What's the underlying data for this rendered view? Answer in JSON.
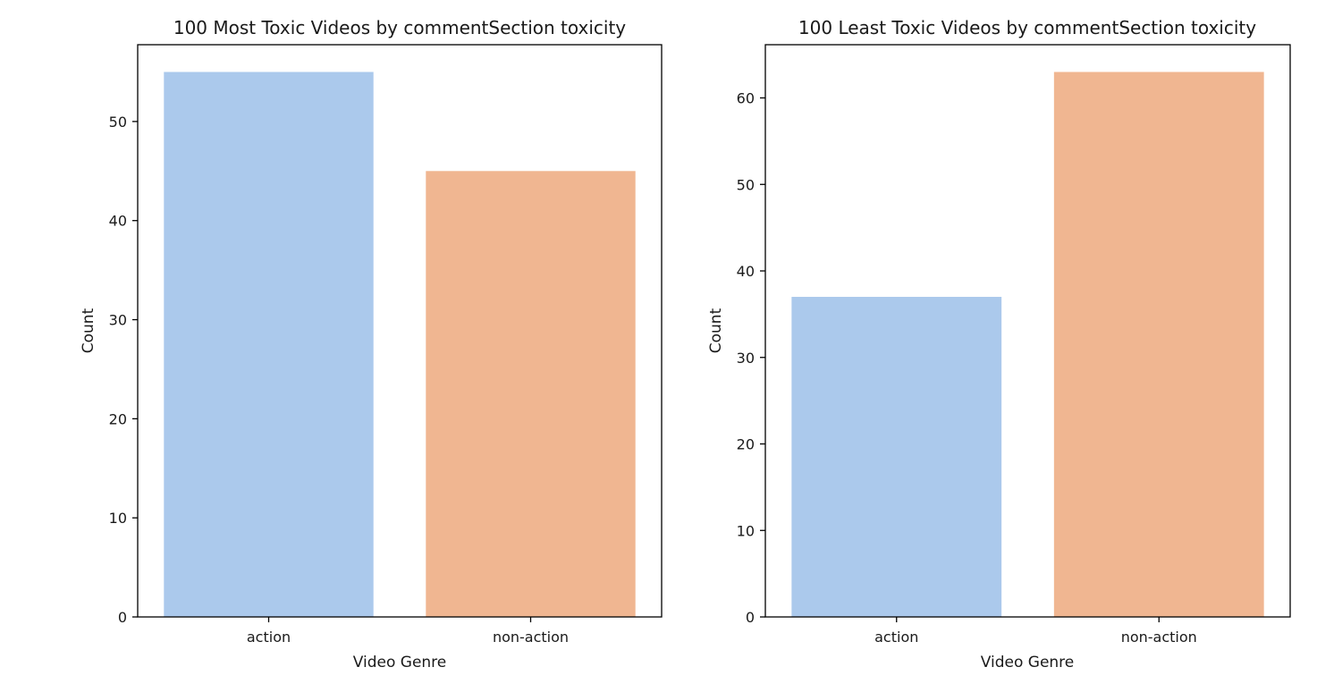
{
  "chart_data": [
    {
      "type": "bar",
      "title": "100 Most Toxic Videos by commentSection toxicity",
      "xlabel": "Video Genre",
      "ylabel": "Count",
      "categories": [
        "action",
        "non-action"
      ],
      "values": [
        55,
        45
      ],
      "ylim": [
        0,
        57.75
      ],
      "yticks": [
        0,
        10,
        20,
        30,
        40,
        50
      ],
      "colors": [
        "#abc9ec",
        "#f0b691"
      ],
      "grid": false,
      "legend": "none"
    },
    {
      "type": "bar",
      "title": "100 Least Toxic Videos by commentSection toxicity",
      "xlabel": "Video Genre",
      "ylabel": "Count",
      "categories": [
        "action",
        "non-action"
      ],
      "values": [
        37,
        63
      ],
      "ylim": [
        0,
        66.15
      ],
      "yticks": [
        0,
        10,
        20,
        30,
        40,
        50,
        60
      ],
      "colors": [
        "#abc9ec",
        "#f0b691"
      ],
      "grid": false,
      "legend": "none"
    }
  ]
}
